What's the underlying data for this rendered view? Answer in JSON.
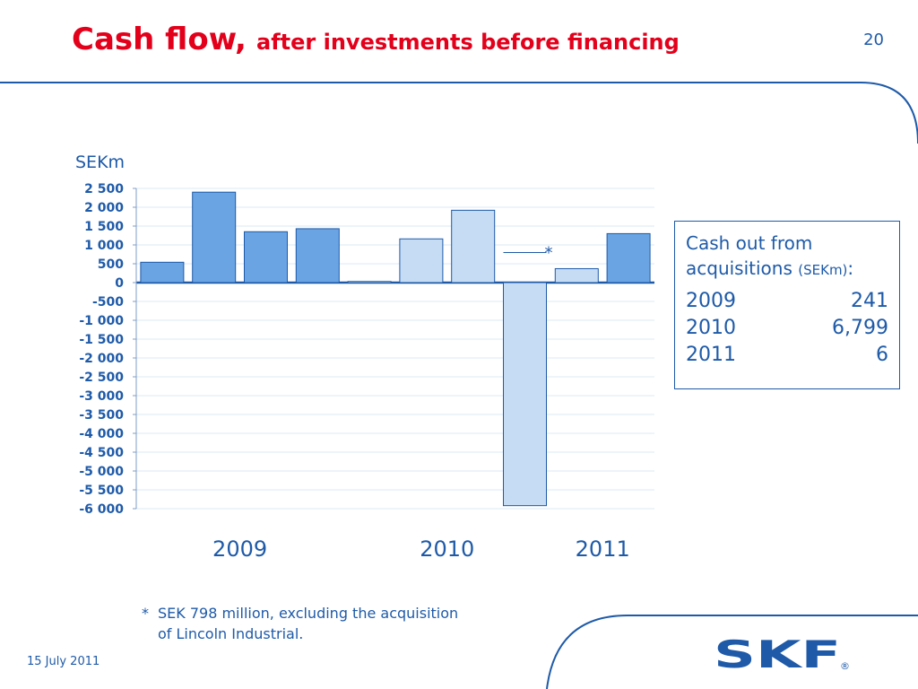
{
  "page": {
    "title_main": "Cash flow,",
    "title_sub": "after investments before financing",
    "page_number": "20",
    "date": "15 July 2011",
    "logo_text": "SKF",
    "logo_mark": "®"
  },
  "colors": {
    "accent": "#e3001b",
    "text": "#1e5aa8",
    "bar_dark": "#6aa4e3",
    "bar_light": "#c5dcf4",
    "bar_border": "#1e5aa8"
  },
  "chart_data": {
    "type": "bar",
    "unit_label": "SEKm",
    "ylim": [
      -6000,
      2500
    ],
    "yticks": [
      2500,
      2000,
      1500,
      1000,
      500,
      0,
      -500,
      -1000,
      -1500,
      -2000,
      -2500,
      -3000,
      -3500,
      -4000,
      -4500,
      -5000,
      -5500,
      -6000
    ],
    "ytick_labels": [
      "2 500",
      "2 000",
      "1 500",
      "1 000",
      "500",
      "0",
      "-500",
      "-1 000",
      "-1 500",
      "-2 000",
      "-2 500",
      "-3 000",
      "-3 500",
      "-4 000",
      "-4 500",
      "-5 000",
      "-5 500",
      "-6 000"
    ],
    "grid": true,
    "year_groups": [
      {
        "label": "2009",
        "bars": 4
      },
      {
        "label": "2010",
        "bars": 4
      },
      {
        "label": "2011",
        "bars": 2
      }
    ],
    "values": [
      540,
      2400,
      1350,
      1430,
      30,
      1160,
      1920,
      -5920,
      370,
      1300
    ],
    "bar_shade": [
      "dark",
      "dark",
      "dark",
      "dark",
      "light",
      "light",
      "light",
      "light",
      "light",
      "dark"
    ],
    "annotation": {
      "bar_index": 7,
      "value": 798,
      "marker": "*"
    }
  },
  "info_box": {
    "title_line1": "Cash out from",
    "title_line2": "acquisitions",
    "title_unit": "(SEKm)",
    "title_colon": ":",
    "rows": [
      {
        "year": "2009",
        "value": "241"
      },
      {
        "year": "2010",
        "value": "6,799"
      },
      {
        "year": "2011",
        "value": "6"
      }
    ]
  },
  "footnote": {
    "marker": "*",
    "line1": "SEK 798 million, excluding the acquisition",
    "line2": "of Lincoln Industrial."
  }
}
